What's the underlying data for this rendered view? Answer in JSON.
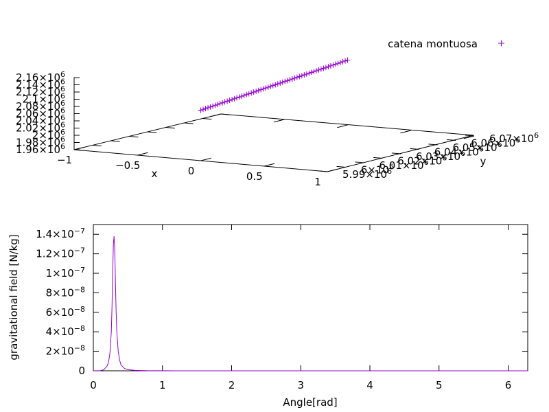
{
  "chart_data": [
    {
      "type": "scatter",
      "projection": "3d",
      "title": "",
      "xlabel": "x",
      "ylabel": "y",
      "zlabel": "",
      "legend": {
        "position": "top-right",
        "entries": [
          {
            "name": "catena montuosa",
            "marker": "+",
            "color": "#9400d3"
          }
        ]
      },
      "xlim": [
        -1,
        1
      ],
      "ylim": [
        5990000,
        6070000
      ],
      "zlim": [
        1960000,
        2160000
      ],
      "x_ticks": [
        {
          "label": "−1",
          "value": -1
        },
        {
          "label": "−0.5",
          "value": -0.5
        },
        {
          "label": "0",
          "value": 0
        },
        {
          "label": "0.5",
          "value": 0.5
        },
        {
          "label": "1",
          "value": 1
        }
      ],
      "y_ticks": [
        {
          "label": "5.99×10",
          "exp": "6",
          "value": 5990000
        },
        {
          "label": "6×10",
          "exp": "6",
          "value": 6000000
        },
        {
          "label": "6.01×10",
          "exp": "6",
          "value": 6010000
        },
        {
          "label": "6.02×10",
          "exp": "6",
          "value": 6020000
        },
        {
          "label": "6.03×10",
          "exp": "6",
          "value": 6030000
        },
        {
          "label": "6.04×10",
          "exp": "6",
          "value": 6040000
        },
        {
          "label": "6.05×10",
          "exp": "6",
          "value": 6050000
        },
        {
          "label": "6.06×10",
          "exp": "6",
          "value": 6060000
        },
        {
          "label": "6.07×10",
          "exp": "6",
          "value": 6070000
        }
      ],
      "z_ticks": [
        {
          "label": "1.96×10",
          "exp": "6",
          "value": 1960000
        },
        {
          "label": "1.98×10",
          "exp": "6",
          "value": 1980000
        },
        {
          "label": "2×10",
          "exp": "6",
          "value": 2000000
        },
        {
          "label": "2.02×10",
          "exp": "6",
          "value": 2020000
        },
        {
          "label": "2.04×10",
          "exp": "6",
          "value": 2040000
        },
        {
          "label": "2.06×10",
          "exp": "6",
          "value": 2060000
        },
        {
          "label": "2.08×10",
          "exp": "6",
          "value": 2080000
        },
        {
          "label": "2.1×10",
          "exp": "6",
          "value": 2100000
        },
        {
          "label": "2.12×10",
          "exp": "6",
          "value": 2120000
        },
        {
          "label": "2.14×10",
          "exp": "6",
          "value": 2140000
        },
        {
          "label": "2.16×10",
          "exp": "6",
          "value": 2160000
        }
      ],
      "series": [
        {
          "name": "catena montuosa",
          "color": "#9400d3",
          "marker": "+",
          "x": 0,
          "y_range": [
            5990000,
            6070000
          ],
          "z_range": [
            2100000,
            2140000
          ],
          "point_count": 62
        }
      ]
    },
    {
      "type": "line",
      "title": "",
      "xlabel": "Angle[rad]",
      "ylabel": "gravitational field [N/kg]",
      "xlim": [
        0,
        6.283
      ],
      "ylim": [
        0,
        1.5e-07
      ],
      "grid": false,
      "x_ticks": [
        {
          "label": "0",
          "value": 0
        },
        {
          "label": "1",
          "value": 1
        },
        {
          "label": "2",
          "value": 2
        },
        {
          "label": "3",
          "value": 3
        },
        {
          "label": "4",
          "value": 4
        },
        {
          "label": "5",
          "value": 5
        },
        {
          "label": "6",
          "value": 6
        }
      ],
      "y_ticks": [
        {
          "label": "0",
          "exp": "",
          "value": 0
        },
        {
          "label": "2×10",
          "exp": "−8",
          "value": 2e-08
        },
        {
          "label": "4×10",
          "exp": "−8",
          "value": 4e-08
        },
        {
          "label": "6×10",
          "exp": "−8",
          "value": 6e-08
        },
        {
          "label": "8×10",
          "exp": "−8",
          "value": 8e-08
        },
        {
          "label": "1×10",
          "exp": "−7",
          "value": 1e-07
        },
        {
          "label": "1.2×10",
          "exp": "−7",
          "value": 1.2e-07
        },
        {
          "label": "1.4×10",
          "exp": "−7",
          "value": 1.4e-07
        }
      ],
      "series": [
        {
          "color": "#9400d3",
          "x": [
            0,
            0.1,
            0.15,
            0.2,
            0.22,
            0.24,
            0.26,
            0.27,
            0.28,
            0.29,
            0.3,
            0.31,
            0.32,
            0.33,
            0.34,
            0.36,
            0.38,
            0.4,
            0.45,
            0.5,
            0.6,
            0.8,
            1.0,
            1.5,
            2,
            3,
            4,
            5,
            6,
            6.283
          ],
          "y": [
            0,
            2e-10,
            1e-09,
            5e-09,
            9e-09,
            1.8e-08,
            4e-08,
            6.5e-08,
            1e-07,
            1.3e-07,
            1.38e-07,
            1.25e-07,
            9e-08,
            6e-08,
            4e-08,
            2e-08,
            1.1e-08,
            6e-09,
            2.5e-09,
            1.2e-09,
            4e-10,
            1e-10,
            5e-11,
            1e-11,
            5e-12,
            1e-12,
            5e-13,
            2e-13,
            1e-13,
            0
          ]
        }
      ]
    }
  ]
}
